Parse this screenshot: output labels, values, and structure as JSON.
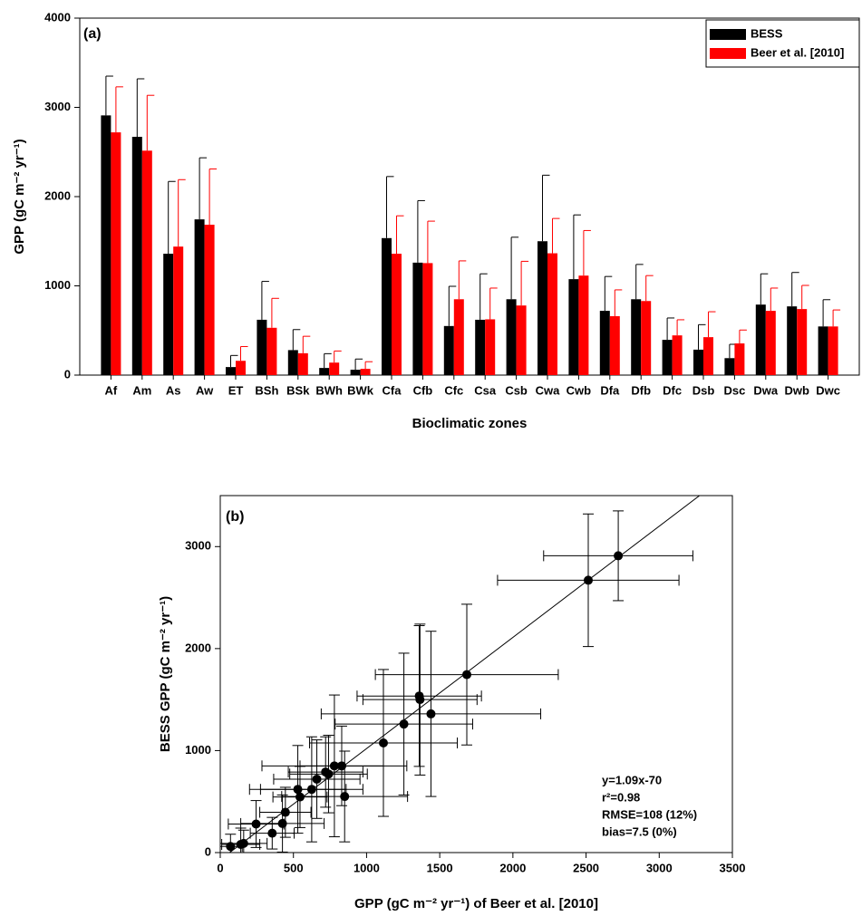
{
  "chart_data": [
    {
      "type": "bar",
      "panel_label": "(a)",
      "xlabel": "Bioclimatic zones",
      "ylabel": "GPP (gC m⁻² yr⁻¹)",
      "categories": [
        "Af",
        "Am",
        "As",
        "Aw",
        "ET",
        "BSh",
        "BSk",
        "BWh",
        "BWk",
        "Cfa",
        "Cfb",
        "Cfc",
        "Csa",
        "Csb",
        "Cwa",
        "Cwb",
        "Dfa",
        "Dfb",
        "Dfc",
        "Dsb",
        "Dsc",
        "Dwa",
        "Dwb",
        "Dwc"
      ],
      "series": [
        {
          "name": "BESS",
          "color": "#000000",
          "values": [
            2910,
            2670,
            1360,
            1745,
            90,
            620,
            280,
            80,
            60,
            1535,
            1260,
            550,
            620,
            850,
            1500,
            1075,
            720,
            850,
            395,
            285,
            190,
            790,
            770,
            545
          ],
          "errors": [
            440,
            650,
            810,
            690,
            130,
            430,
            230,
            160,
            120,
            690,
            695,
            445,
            515,
            695,
            740,
            720,
            385,
            390,
            245,
            280,
            155,
            345,
            380,
            300
          ]
        },
        {
          "name": "Beer et al. [2010]",
          "color": "#ff0000",
          "values": [
            2720,
            2515,
            1440,
            1685,
            160,
            530,
            245,
            140,
            70,
            1360,
            1255,
            850,
            625,
            780,
            1365,
            1115,
            660,
            830,
            445,
            425,
            355,
            720,
            740,
            545
          ],
          "errors": [
            510,
            620,
            750,
            625,
            160,
            330,
            190,
            130,
            80,
            425,
            470,
            430,
            350,
            495,
            390,
            505,
            295,
            285,
            175,
            285,
            150,
            255,
            265,
            185
          ]
        }
      ],
      "ylim": [
        0,
        4000
      ],
      "yticks": [
        0,
        1000,
        2000,
        3000,
        4000
      ],
      "legend": "top-right"
    },
    {
      "type": "scatter",
      "panel_label": "(b)",
      "xlabel": "GPP (gC m⁻² yr⁻¹) of Beer et al. [2010]",
      "ylabel": "BESS GPP (gC m⁻² yr⁻¹)",
      "color": "#000000",
      "x": [
        2720,
        2515,
        1440,
        1685,
        160,
        530,
        245,
        140,
        70,
        1360,
        1255,
        850,
        625,
        780,
        1365,
        1115,
        660,
        830,
        445,
        425,
        355,
        720,
        740,
        545
      ],
      "x_errors": [
        510,
        620,
        750,
        625,
        160,
        330,
        190,
        130,
        80,
        425,
        470,
        430,
        350,
        495,
        390,
        505,
        295,
        285,
        175,
        285,
        150,
        255,
        265,
        185
      ],
      "values": [
        2910,
        2670,
        1360,
        1745,
        90,
        620,
        280,
        80,
        60,
        1535,
        1260,
        550,
        620,
        850,
        1500,
        1075,
        720,
        850,
        395,
        285,
        190,
        790,
        770,
        545
      ],
      "y_errors": [
        440,
        650,
        810,
        690,
        130,
        430,
        230,
        160,
        120,
        690,
        695,
        445,
        515,
        695,
        740,
        720,
        385,
        390,
        245,
        280,
        155,
        345,
        380,
        300
      ],
      "fit_line": {
        "slope": 1.09,
        "intercept": -70
      },
      "annotations": [
        "y=1.09x-70",
        "r²=0.98",
        "RMSE=108 (12%)",
        "bias=7.5 (0%)"
      ],
      "xlim": [
        0,
        3500
      ],
      "xticks": [
        0,
        500,
        1000,
        1500,
        2000,
        2500,
        3000,
        3500
      ],
      "ylim": [
        0,
        3500
      ],
      "yticks": [
        0,
        1000,
        2000,
        3000
      ]
    }
  ]
}
